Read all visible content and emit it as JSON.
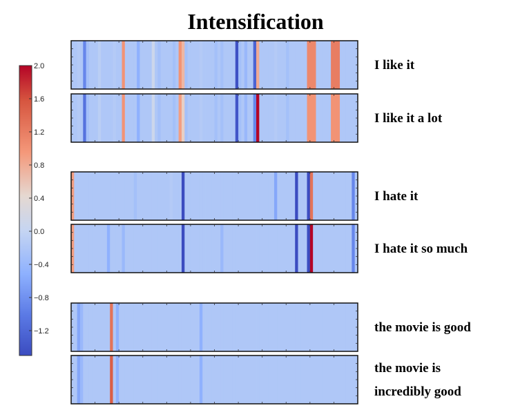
{
  "chart_data": {
    "type": "heatmap",
    "title": "Intensification",
    "colorbar": {
      "colormap": "coolwarm",
      "min": -1.5,
      "max": 2.0,
      "ticks": [
        2.0,
        1.6,
        1.2,
        0.8,
        0.4,
        0.0,
        -0.4,
        -0.8,
        -1.2
      ],
      "tick_labels": [
        "2.0",
        "1.6",
        "1.2",
        "0.8",
        "0.4",
        "0.0",
        "−0.4",
        "−0.8",
        "−1.2"
      ]
    },
    "rows": [
      {
        "label": "I like it",
        "label_lines": [
          "I like it"
        ],
        "values": [
          -0.2,
          -0.2,
          -0.15,
          -0.2,
          -0.9,
          -0.3,
          -0.2,
          -0.2,
          -0.2,
          -0.1,
          -0.2,
          -0.2,
          -0.2,
          -0.2,
          -0.15,
          -0.2,
          -0.2,
          1.0,
          -0.2,
          -0.2,
          -0.2,
          -0.2,
          -0.5,
          -0.2,
          -0.2,
          -0.2,
          -0.2,
          0.1,
          -0.2,
          -0.3,
          -0.2,
          -0.2,
          -0.2,
          -0.2,
          -0.3,
          -0.2,
          1.0,
          0.7,
          -0.3,
          -0.2,
          -0.2,
          -0.2,
          -0.2,
          -0.15,
          -0.2,
          -0.2,
          -0.2,
          -0.2,
          -0.3,
          -0.2,
          -0.3,
          -0.2,
          -0.2,
          -0.2,
          -0.2,
          -1.45,
          -0.3,
          -0.2,
          -0.4,
          -0.2,
          -0.2,
          -1.25,
          0.8,
          -0.2,
          -0.2,
          -0.2,
          -0.2,
          -0.2,
          -0.15,
          -0.2,
          -0.2,
          -0.2,
          -0.3,
          -0.2,
          -0.2,
          -0.2,
          -0.2,
          -0.2,
          -0.2,
          1.1,
          1.1,
          1.1,
          -0.2,
          -0.2,
          -0.2,
          -0.2,
          -0.2,
          1.2,
          1.2,
          1.2,
          -0.2,
          -0.2,
          -0.2,
          -0.2,
          -0.2,
          -0.2
        ]
      },
      {
        "label": "I like it a lot",
        "label_lines": [
          "I like it a lot"
        ],
        "values": [
          -0.2,
          -0.2,
          -0.15,
          -0.2,
          -1.1,
          -0.3,
          -0.2,
          -0.2,
          -0.2,
          -0.1,
          -0.2,
          -0.2,
          -0.2,
          -0.2,
          -0.15,
          -0.2,
          -0.2,
          1.0,
          -0.2,
          -0.2,
          -0.2,
          -0.2,
          -0.5,
          -0.2,
          -0.2,
          -0.2,
          -0.2,
          0.1,
          -0.2,
          -0.3,
          -0.2,
          -0.2,
          -0.2,
          -0.2,
          -0.3,
          -0.2,
          0.9,
          0.5,
          -0.3,
          -0.2,
          -0.2,
          -0.2,
          -0.2,
          -0.15,
          -0.2,
          -0.2,
          -0.2,
          -0.2,
          -0.3,
          -0.2,
          -0.3,
          -0.2,
          -0.2,
          -0.2,
          -0.2,
          -1.4,
          -0.3,
          -0.2,
          -0.4,
          -0.2,
          -0.2,
          -0.9,
          2.0,
          -0.2,
          -0.2,
          -0.2,
          -0.2,
          -0.2,
          -0.15,
          -0.2,
          -0.2,
          -0.2,
          -0.3,
          -0.2,
          -0.2,
          -0.2,
          -0.2,
          -0.2,
          -0.2,
          1.0,
          1.0,
          1.0,
          -0.2,
          -0.2,
          -0.2,
          -0.2,
          -0.2,
          1.0,
          1.0,
          1.0,
          -0.2,
          -0.2,
          -0.2,
          -0.2,
          -0.2,
          -0.2
        ]
      },
      {
        "label": "I hate it",
        "label_lines": [
          "I hate it"
        ],
        "values": [
          0.9,
          -0.2,
          -0.2,
          -0.2,
          -0.2,
          -0.2,
          -0.2,
          -0.2,
          -0.2,
          -0.2,
          -0.2,
          -0.2,
          -0.2,
          -0.2,
          -0.2,
          -0.2,
          -0.2,
          -0.2,
          -0.2,
          -0.2,
          -0.2,
          -0.3,
          -0.2,
          -0.2,
          -0.2,
          -0.2,
          -0.2,
          -0.2,
          -0.2,
          -0.2,
          -0.2,
          -0.2,
          -0.2,
          -0.15,
          -0.2,
          -0.2,
          -0.2,
          -1.5,
          -0.2,
          -0.2,
          -0.2,
          -0.2,
          -0.2,
          -0.2,
          -0.2,
          -0.2,
          -0.2,
          -0.2,
          -0.2,
          -0.2,
          -0.2,
          -0.2,
          -0.2,
          -0.2,
          -0.2,
          -0.2,
          -0.2,
          -0.2,
          -0.2,
          -0.2,
          -0.2,
          -0.2,
          -0.2,
          -0.2,
          -0.2,
          -0.2,
          -0.2,
          -0.2,
          -0.6,
          -0.2,
          -0.2,
          -0.2,
          -0.2,
          -0.2,
          -0.2,
          -1.5,
          -0.2,
          -0.2,
          -0.2,
          -1.5,
          1.3,
          -0.2,
          -0.2,
          -0.2,
          -0.2,
          -0.2,
          -0.2,
          -0.2,
          -0.2,
          -0.2,
          -0.2,
          -0.2,
          -0.2,
          -0.2,
          -0.9,
          -0.2
        ]
      },
      {
        "label": "I hate it so much",
        "label_lines": [
          "I hate it so much"
        ],
        "values": [
          0.9,
          -0.2,
          -0.2,
          -0.2,
          -0.2,
          -0.2,
          -0.2,
          -0.2,
          -0.2,
          -0.2,
          -0.2,
          -0.2,
          -0.5,
          -0.2,
          -0.2,
          -0.2,
          -0.2,
          -0.4,
          -0.2,
          -0.2,
          -0.2,
          -0.2,
          -0.2,
          -0.2,
          -0.2,
          -0.2,
          -0.2,
          -0.2,
          -0.2,
          -0.2,
          -0.2,
          -0.2,
          -0.2,
          -0.2,
          -0.2,
          -0.2,
          -0.2,
          -1.5,
          -0.2,
          -0.2,
          -0.2,
          -0.2,
          -0.2,
          -0.2,
          -0.2,
          -0.2,
          -0.2,
          -0.2,
          -0.2,
          -0.2,
          -0.4,
          -0.2,
          -0.2,
          -0.2,
          -0.2,
          -0.2,
          -0.2,
          -0.2,
          -0.2,
          -0.2,
          -0.2,
          -0.2,
          -0.2,
          -0.2,
          -0.2,
          -0.2,
          -0.2,
          -0.2,
          -0.2,
          -0.2,
          -0.2,
          -0.2,
          -0.2,
          -0.2,
          -0.2,
          -1.5,
          -0.2,
          -0.2,
          -0.2,
          -1.5,
          2.0,
          -0.2,
          -0.2,
          -0.2,
          -0.2,
          -0.2,
          -0.2,
          -0.2,
          -0.2,
          -0.2,
          -0.2,
          -0.2,
          -0.2,
          -0.2,
          -0.9,
          -0.2
        ]
      },
      {
        "label": "the movie is good",
        "label_lines": [
          "the movie is good"
        ],
        "values": [
          -0.2,
          -0.2,
          -0.6,
          -0.4,
          -0.2,
          -0.2,
          -0.2,
          -0.2,
          -0.2,
          -0.2,
          -0.2,
          -0.2,
          -0.2,
          1.3,
          -0.2,
          -0.5,
          -0.2,
          -0.2,
          -0.2,
          -0.2,
          -0.2,
          -0.2,
          -0.2,
          -0.2,
          -0.2,
          -0.2,
          -0.2,
          -0.2,
          -0.2,
          -0.2,
          -0.2,
          -0.2,
          -0.2,
          -0.2,
          -0.2,
          -0.2,
          -0.2,
          -0.2,
          -0.2,
          -0.2,
          -0.2,
          -0.2,
          -0.2,
          -0.5,
          -0.2,
          -0.2,
          -0.2,
          -0.2,
          -0.2,
          -0.2,
          -0.2,
          -0.2,
          -0.2,
          -0.2,
          -0.2,
          -0.2,
          -0.2,
          -0.2,
          -0.2,
          -0.2,
          -0.2,
          -0.2,
          -0.2,
          -0.2,
          -0.2,
          -0.2,
          -0.2,
          -0.2,
          -0.2,
          -0.2,
          -0.2,
          -0.2,
          -0.2,
          -0.2,
          -0.2,
          -0.2,
          -0.2,
          -0.2,
          -0.2,
          -0.2,
          -0.2,
          -0.2,
          -0.2,
          -0.2,
          -0.2,
          -0.2,
          -0.2,
          -0.2,
          -0.2,
          -0.2,
          -0.2,
          -0.2,
          -0.2,
          -0.2,
          -0.2,
          -0.2
        ]
      },
      {
        "label": "the movie is incredibly good",
        "label_lines": [
          "the movie is",
          "incredibly good"
        ],
        "values": [
          -0.2,
          -0.2,
          -0.6,
          -0.4,
          -0.2,
          -0.2,
          -0.2,
          -0.2,
          -0.2,
          -0.2,
          -0.2,
          -0.2,
          -0.2,
          1.5,
          -0.2,
          -0.5,
          -0.2,
          -0.2,
          -0.2,
          -0.2,
          -0.2,
          -0.2,
          -0.2,
          -0.2,
          -0.2,
          -0.2,
          -0.2,
          -0.2,
          -0.2,
          -0.2,
          -0.2,
          -0.2,
          -0.2,
          -0.2,
          -0.2,
          -0.2,
          -0.2,
          -0.2,
          -0.2,
          -0.2,
          -0.2,
          -0.2,
          -0.2,
          -0.5,
          -0.2,
          -0.2,
          -0.2,
          -0.2,
          -0.2,
          -0.2,
          -0.2,
          -0.2,
          -0.2,
          -0.2,
          -0.2,
          -0.2,
          -0.2,
          -0.2,
          -0.2,
          -0.2,
          -0.2,
          -0.2,
          -0.2,
          -0.2,
          -0.2,
          -0.2,
          -0.2,
          -0.2,
          -0.2,
          -0.2,
          -0.2,
          -0.2,
          -0.2,
          -0.2,
          -0.2,
          -0.2,
          -0.2,
          -0.2,
          -0.2,
          -0.2,
          -0.2,
          -0.2,
          -0.2,
          -0.2,
          -0.2,
          -0.2,
          -0.2,
          -0.2,
          -0.2,
          -0.2,
          -0.2,
          -0.2,
          -0.2,
          -0.2,
          -0.2,
          -0.2
        ]
      }
    ]
  }
}
